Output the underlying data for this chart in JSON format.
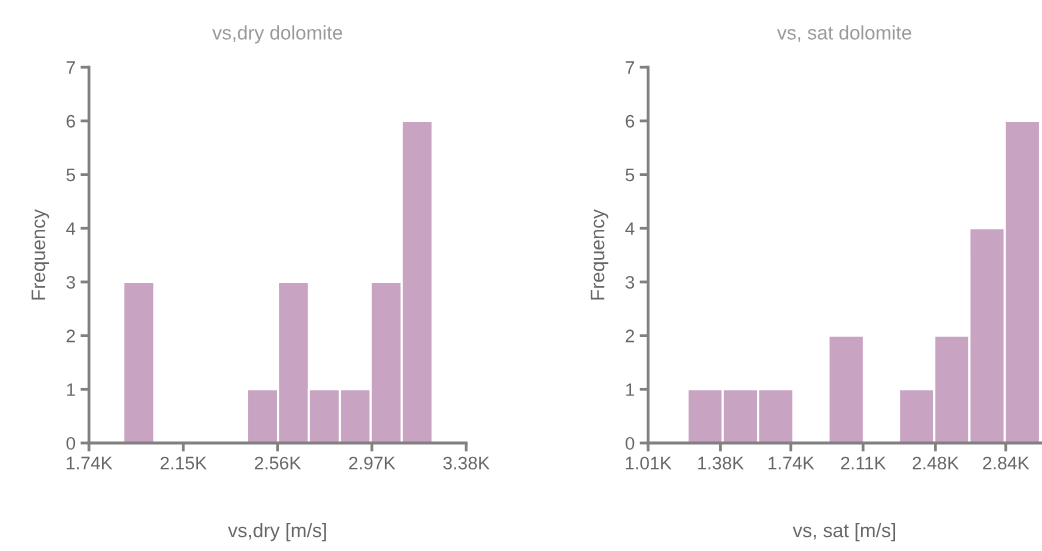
{
  "chart_data": [
    {
      "type": "histogram",
      "title": "vs,dry dolomite",
      "xlabel": "vs,dry [m/s]",
      "ylabel": "Frequency",
      "color": "#c9a3c2",
      "bins": [
        1889,
        2024,
        2158,
        2293,
        2427,
        2562,
        2696,
        2831,
        2965,
        3100,
        3234
      ],
      "values": [
        3,
        0,
        0,
        0,
        1,
        3,
        1,
        1,
        3,
        6
      ],
      "xlim": [
        1740,
        3380
      ],
      "xticks": [
        {
          "value": 1740,
          "label": "1.74K"
        },
        {
          "value": 2150,
          "label": "2.15K"
        },
        {
          "value": 2560,
          "label": "2.56K"
        },
        {
          "value": 2970,
          "label": "2.97K"
        },
        {
          "value": 3380,
          "label": "3.38K"
        }
      ],
      "ylim": [
        0,
        7
      ],
      "yticks": [
        0,
        1,
        2,
        3,
        4,
        5,
        6,
        7
      ],
      "grid": false,
      "legend": false
    },
    {
      "type": "histogram",
      "title": "vs, sat dolomite",
      "xlabel": "vs, sat [m/s]",
      "ylabel": "Frequency",
      "color": "#c9a3c2",
      "bins": [
        1212,
        1392,
        1573,
        1753,
        1933,
        2114,
        2294,
        2474,
        2654,
        2835,
        3015
      ],
      "values": [
        1,
        1,
        1,
        0,
        2,
        0,
        1,
        2,
        4,
        6
      ],
      "xlim": [
        1010,
        3020
      ],
      "xticks": [
        {
          "value": 1010,
          "label": "1.01K"
        },
        {
          "value": 1380,
          "label": "1.38K"
        },
        {
          "value": 1740,
          "label": "1.74K"
        },
        {
          "value": 2110,
          "label": "2.11K"
        },
        {
          "value": 2480,
          "label": "2.48K"
        },
        {
          "value": 2840,
          "label": "2.84K"
        }
      ],
      "ylim": [
        0,
        7
      ],
      "yticks": [
        0,
        1,
        2,
        3,
        4,
        5,
        6,
        7
      ],
      "grid": false,
      "legend": false
    }
  ]
}
